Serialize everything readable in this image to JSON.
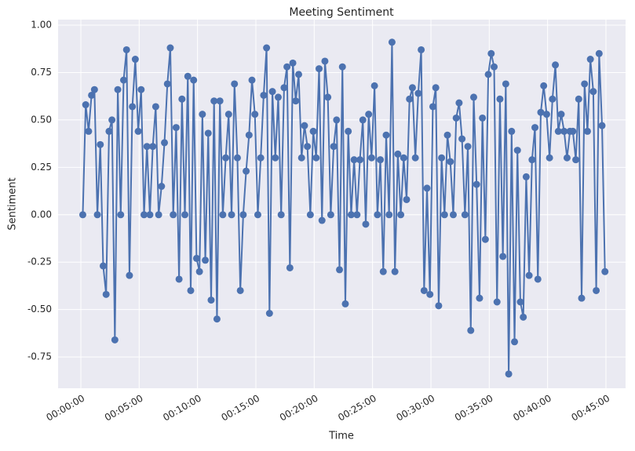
{
  "chart_data": {
    "type": "line",
    "title": "Meeting Sentiment",
    "x_label": "Time",
    "y_label": "Sentiment",
    "grid": true,
    "markers": true,
    "xlim": [
      -117,
      2801
    ],
    "ylim": [
      -0.915,
      1.029
    ],
    "xticks": [
      {
        "value": 0,
        "label": "00:00:00"
      },
      {
        "value": 300,
        "label": "00:05:00"
      },
      {
        "value": 600,
        "label": "00:10:00"
      },
      {
        "value": 900,
        "label": "00:15:00"
      },
      {
        "value": 1200,
        "label": "00:20:00"
      },
      {
        "value": 1500,
        "label": "00:25:00"
      },
      {
        "value": 1800,
        "label": "00:30:00"
      },
      {
        "value": 2100,
        "label": "00:35:00"
      },
      {
        "value": 2400,
        "label": "00:40:00"
      },
      {
        "value": 2700,
        "label": "00:45:00"
      }
    ],
    "yticks": [
      {
        "value": -0.75,
        "label": "-0.75"
      },
      {
        "value": -0.5,
        "label": "-0.50"
      },
      {
        "value": -0.25,
        "label": "-0.25"
      },
      {
        "value": 0,
        "label": "0.00"
      },
      {
        "value": 0.25,
        "label": "0.25"
      },
      {
        "value": 0.5,
        "label": "0.50"
      },
      {
        "value": 0.75,
        "label": "0.75"
      },
      {
        "value": 1,
        "label": "1.00"
      }
    ],
    "x": [
      10,
      25,
      40,
      55,
      70,
      85,
      100,
      115,
      130,
      145,
      160,
      175,
      190,
      205,
      220,
      235,
      250,
      265,
      280,
      295,
      310,
      325,
      340,
      355,
      370,
      385,
      400,
      415,
      430,
      445,
      460,
      475,
      490,
      505,
      520,
      535,
      550,
      565,
      580,
      595,
      610,
      625,
      640,
      655,
      670,
      685,
      700,
      715,
      730,
      745,
      760,
      775,
      790,
      805,
      820,
      835,
      850,
      865,
      880,
      895,
      910,
      925,
      940,
      955,
      970,
      985,
      1000,
      1015,
      1030,
      1045,
      1060,
      1075,
      1090,
      1105,
      1120,
      1135,
      1150,
      1165,
      1180,
      1195,
      1210,
      1225,
      1240,
      1255,
      1270,
      1285,
      1300,
      1315,
      1330,
      1345,
      1360,
      1375,
      1390,
      1405,
      1420,
      1435,
      1450,
      1465,
      1480,
      1495,
      1510,
      1525,
      1540,
      1555,
      1570,
      1585,
      1600,
      1615,
      1630,
      1645,
      1660,
      1675,
      1690,
      1705,
      1720,
      1735,
      1750,
      1765,
      1780,
      1795,
      1810,
      1825,
      1840,
      1855,
      1870,
      1885,
      1900,
      1915,
      1930,
      1945,
      1960,
      1975,
      1990,
      2005,
      2020,
      2035,
      2050,
      2065,
      2080,
      2095,
      2110,
      2125,
      2140,
      2155,
      2170,
      2185,
      2200,
      2215,
      2230,
      2245,
      2260,
      2275,
      2290,
      2305,
      2320,
      2335,
      2350,
      2365,
      2380,
      2395,
      2410,
      2425,
      2440,
      2455,
      2470,
      2485,
      2500,
      2515,
      2530,
      2545,
      2560,
      2575,
      2590,
      2605,
      2620,
      2635,
      2650,
      2665,
      2680,
      2695
    ],
    "series": [
      {
        "name": "Sentiment",
        "color": "#4c72b0",
        "values": [
          0,
          0.58,
          0.44,
          0.63,
          0.66,
          0,
          0.37,
          -0.27,
          -0.42,
          0.44,
          0.5,
          -0.66,
          0.66,
          0,
          0.71,
          0.87,
          -0.32,
          0.57,
          0.82,
          0.44,
          0.66,
          0,
          0.36,
          0,
          0.36,
          0.57,
          0,
          0.15,
          0.38,
          0.69,
          0.88,
          0,
          0.46,
          -0.34,
          0.61,
          0,
          0.73,
          -0.4,
          0.71,
          -0.23,
          -0.3,
          0.53,
          -0.24,
          0.43,
          -0.45,
          0.6,
          -0.55,
          0.6,
          0,
          0.3,
          0.53,
          0,
          0.69,
          0.3,
          -0.4,
          0,
          0.23,
          0.42,
          0.71,
          0.53,
          0,
          0.3,
          0.63,
          0.88,
          -0.52,
          0.65,
          0.3,
          0.62,
          0,
          0.67,
          0.78,
          -0.28,
          0.8,
          0.6,
          0.74,
          0.3,
          0.47,
          0.36,
          0,
          0.44,
          0.3,
          0.77,
          -0.03,
          0.81,
          0.62,
          0,
          0.36,
          0.5,
          -0.29,
          0.78,
          -0.47,
          0.44,
          0,
          0.29,
          0,
          0.29,
          0.5,
          -0.05,
          0.53,
          0.3,
          0.68,
          0,
          0.29,
          -0.3,
          0.42,
          0,
          0.91,
          -0.3,
          0.32,
          0,
          0.3,
          0.08,
          0.61,
          0.67,
          0.3,
          0.64,
          0.87,
          -0.4,
          0.14,
          -0.42,
          0.57,
          0.67,
          -0.48,
          0.3,
          0,
          0.42,
          0.28,
          0,
          0.51,
          0.59,
          0.4,
          0,
          0.36,
          -0.61,
          0.62,
          0.16,
          -0.44,
          0.51,
          -0.13,
          0.74,
          0.85,
          0.78,
          -0.46,
          0.61,
          -0.22,
          0.69,
          -0.84,
          0.44,
          -0.67,
          0.34,
          -0.46,
          -0.54,
          0.2,
          -0.32,
          0.29,
          0.46,
          -0.34,
          0.54,
          0.68,
          0.53,
          0.3,
          0.61,
          0.79,
          0.44,
          0.53,
          0.44,
          0.3,
          0.44,
          0.44,
          0.29,
          0.61,
          -0.44,
          0.69,
          0.44,
          0.82,
          0.65,
          -0.4,
          0.85,
          0.47,
          -0.3
        ]
      }
    ]
  }
}
